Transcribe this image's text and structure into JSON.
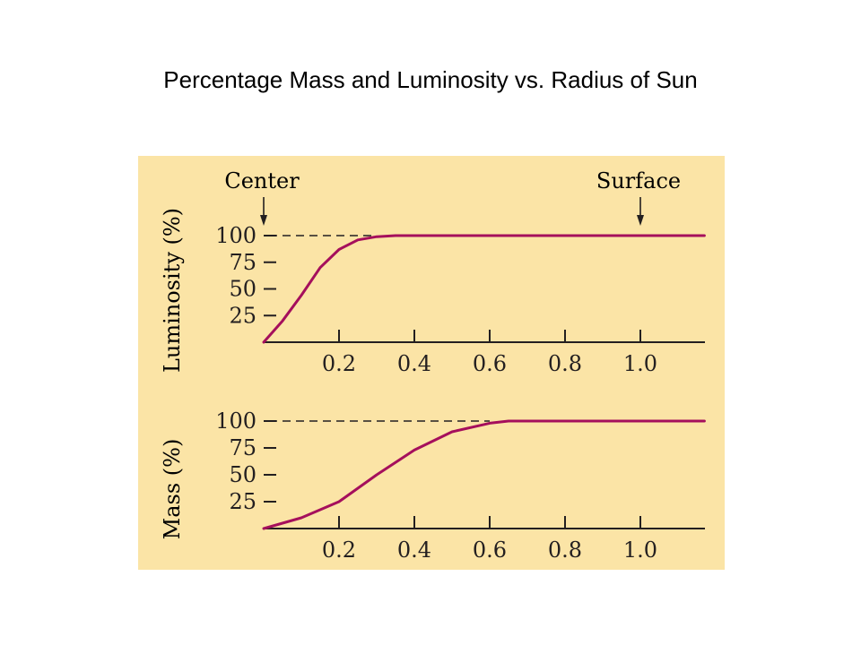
{
  "page": {
    "title": "Percentage Mass and Luminosity vs. Radius of Sun"
  },
  "colors": {
    "panel_bg": "#fbe4a6",
    "curve": "#a50f5c",
    "axis": "#231f20"
  },
  "annotations": {
    "center_label": "Center",
    "surface_label": "Surface",
    "center_x": 0.0,
    "surface_x": 1.0
  },
  "chart_data": [
    {
      "type": "line",
      "title": "",
      "xlabel": "",
      "ylabel": "Luminosity (%)",
      "xlim": [
        0,
        1.17
      ],
      "ylim": [
        0,
        100
      ],
      "x_ticks": [
        0.2,
        0.4,
        0.6,
        0.8,
        1.0
      ],
      "x_tick_labels": [
        "0.2",
        "0.4",
        "0.6",
        "0.8",
        "1.0"
      ],
      "y_ticks": [
        25,
        50,
        75,
        100
      ],
      "y_tick_labels": [
        "25",
        "50",
        "75",
        "100"
      ],
      "reference_line": {
        "y": 100,
        "x_end": 0.3,
        "style": "dashed"
      },
      "series": [
        {
          "values_x": [
            0,
            0.05,
            0.1,
            0.15,
            0.2,
            0.25,
            0.3,
            0.35,
            0.4,
            0.6,
            0.8,
            1.0,
            1.17
          ],
          "values_y": [
            0,
            20,
            44,
            70,
            87,
            96,
            99,
            100,
            100,
            100,
            100,
            100,
            100
          ]
        }
      ]
    },
    {
      "type": "line",
      "title": "",
      "xlabel": "",
      "ylabel": "Mass (%)",
      "xlim": [
        0,
        1.17
      ],
      "ylim": [
        0,
        100
      ],
      "x_ticks": [
        0.2,
        0.4,
        0.6,
        0.8,
        1.0
      ],
      "x_tick_labels": [
        "0.2",
        "0.4",
        "0.6",
        "0.8",
        "1.0"
      ],
      "y_ticks": [
        25,
        50,
        75,
        100
      ],
      "y_tick_labels": [
        "25",
        "50",
        "75",
        "100"
      ],
      "reference_line": {
        "y": 100,
        "x_end": 0.6,
        "style": "dashed"
      },
      "series": [
        {
          "values_x": [
            0,
            0.1,
            0.2,
            0.3,
            0.4,
            0.5,
            0.6,
            0.65,
            0.8,
            1.0,
            1.17
          ],
          "values_y": [
            0,
            10,
            25,
            50,
            73,
            90,
            98,
            100,
            100,
            100,
            100
          ]
        }
      ]
    }
  ]
}
